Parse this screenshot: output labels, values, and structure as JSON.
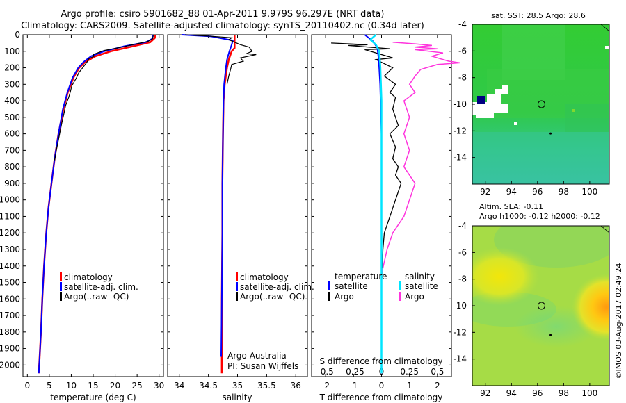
{
  "title": {
    "line1": "Argo profile: csiro 5901682_88 01-Apr-2011 9.979S 96.297E (NRT data)",
    "line2": "Climatology: CARS2009. Satellite-adjusted climatology: synTS_20110402.nc (0.34d later)"
  },
  "credit": "©IMOS 03-Aug-2017 02:49:24",
  "colors": {
    "clim": "#ff0000",
    "sat": "#0000ff",
    "argo": "#000000",
    "sat_s": "#00e5ff",
    "argo_s": "#ff33dd"
  },
  "depth_axis": {
    "ticks": [
      "0",
      "100",
      "200",
      "300",
      "400",
      "500",
      "600",
      "700",
      "800",
      "900",
      "1000",
      "1100",
      "1200",
      "1300",
      "1400",
      "1500",
      "1600",
      "1700",
      "1800",
      "1900",
      "2000"
    ],
    "range": [
      0,
      2070
    ]
  },
  "chart_data": [
    {
      "type": "line",
      "id": "temperature",
      "xlabel": "temperature (deg C)",
      "xlim": [
        -1,
        31
      ],
      "xticks": [
        "0",
        "5",
        "10",
        "15",
        "20",
        "25",
        "30"
      ],
      "legend": [
        "climatology",
        "satellite-adj. clim.",
        "Argo(..raw -QC)"
      ],
      "series": [
        {
          "name": "climatology",
          "points": [
            [
              29.2,
              0
            ],
            [
              29,
              20
            ],
            [
              28,
              45
            ],
            [
              24,
              70
            ],
            [
              19,
              100
            ],
            [
              15.5,
              130
            ],
            [
              13.2,
              165
            ],
            [
              11.8,
              200
            ],
            [
              10.5,
              260
            ],
            [
              9.2,
              350
            ],
            [
              8.2,
              450
            ],
            [
              7.1,
              600
            ],
            [
              6.2,
              750
            ],
            [
              5.5,
              900
            ],
            [
              4.8,
              1050
            ],
            [
              4.3,
              1200
            ],
            [
              3.8,
              1400
            ],
            [
              3.4,
              1600
            ],
            [
              3.1,
              1800
            ],
            [
              2.8,
              1950
            ],
            [
              2.6,
              2050
            ]
          ]
        },
        {
          "name": "satellite-adj. clim.",
          "points": [
            [
              28.6,
              0
            ],
            [
              28.4,
              25
            ],
            [
              27,
              45
            ],
            [
              22,
              70
            ],
            [
              17.5,
              100
            ],
            [
              14.5,
              130
            ],
            [
              12.8,
              165
            ],
            [
              11.6,
              200
            ],
            [
              10.3,
              260
            ],
            [
              9.1,
              350
            ],
            [
              8.1,
              450
            ],
            [
              7.1,
              600
            ],
            [
              6.2,
              750
            ],
            [
              5.5,
              900
            ],
            [
              4.8,
              1050
            ],
            [
              4.3,
              1200
            ],
            [
              3.8,
              1400
            ],
            [
              3.4,
              1600
            ],
            [
              3.1,
              1800
            ],
            [
              2.8,
              1950
            ],
            [
              2.6,
              2050
            ]
          ]
        },
        {
          "name": "Argo(..raw -QC)",
          "points": [
            [
              28.7,
              5
            ],
            [
              28.5,
              25
            ],
            [
              27.5,
              40
            ],
            [
              24,
              60
            ],
            [
              21.5,
              75
            ],
            [
              17.5,
              95
            ],
            [
              16,
              110
            ],
            [
              15,
              120
            ],
            [
              15.2,
              130
            ],
            [
              14,
              145
            ],
            [
              13.6,
              165
            ],
            [
              12.6,
              200
            ],
            [
              11.7,
              230
            ],
            [
              11.2,
              260
            ],
            [
              10.1,
              310
            ],
            [
              9.8,
              345
            ],
            [
              9.4,
              380
            ],
            [
              8.7,
              430
            ],
            [
              8.4,
              470
            ],
            [
              7.8,
              540
            ],
            [
              7.2,
              620
            ],
            [
              6.6,
              700
            ],
            [
              6.2,
              760
            ]
          ]
        }
      ]
    },
    {
      "type": "line",
      "id": "salinity",
      "xlabel": "salinity",
      "xlim": [
        33.8,
        36.2
      ],
      "xticks": [
        "34",
        "34.5",
        "35",
        "35.5",
        "36"
      ],
      "legend": [
        "climatology",
        "satellite-adj. clim.",
        "Argo(..raw -QC)"
      ],
      "annotation": [
        "Argo Australia",
        "PI: Susan Wijffels"
      ],
      "series": [
        {
          "name": "climatology",
          "points": [
            [
              34.95,
              0
            ],
            [
              34.95,
              50
            ],
            [
              34.95,
              80
            ],
            [
              34.9,
              100
            ],
            [
              34.85,
              150
            ],
            [
              34.82,
              200
            ],
            [
              34.78,
              300
            ],
            [
              34.76,
              400
            ],
            [
              34.75,
              600
            ],
            [
              34.74,
              900
            ],
            [
              34.74,
              1200
            ],
            [
              34.73,
              1600
            ],
            [
              34.73,
              2050
            ]
          ]
        },
        {
          "name": "satellite-adj. clim.",
          "points": [
            [
              34.05,
              0
            ],
            [
              34.55,
              10
            ],
            [
              34.92,
              35
            ],
            [
              34.9,
              60
            ],
            [
              34.86,
              100
            ],
            [
              34.82,
              150
            ],
            [
              34.8,
              200
            ],
            [
              34.77,
              300
            ],
            [
              34.76,
              400
            ],
            [
              34.75,
              600
            ],
            [
              34.74,
              900
            ],
            [
              34.74,
              1200
            ],
            [
              34.73,
              1600
            ],
            [
              34.72,
              1950
            ]
          ]
        },
        {
          "name": "Argo(..raw -QC)",
          "points": [
            [
              34.1,
              0
            ],
            [
              34.5,
              8
            ],
            [
              34.9,
              18
            ],
            [
              34.85,
              30
            ],
            [
              34.95,
              45
            ],
            [
              35.05,
              60
            ],
            [
              35.2,
              75
            ],
            [
              35.25,
              100
            ],
            [
              35.15,
              115
            ],
            [
              35.32,
              120
            ],
            [
              35.05,
              140
            ],
            [
              35.1,
              160
            ],
            [
              34.9,
              180
            ],
            [
              34.88,
              210
            ],
            [
              34.85,
              250
            ],
            [
              34.82,
              300
            ]
          ]
        }
      ]
    },
    {
      "type": "line",
      "id": "differences",
      "xlabel": "T difference from climatology",
      "xlabel_top": "S difference from climatology",
      "xlim": [
        -2.5,
        2.5
      ],
      "xticks": [
        "-2",
        "-1",
        "0",
        "1",
        "2"
      ],
      "xticks_s": [
        "-0.5",
        "-0.25",
        "0",
        "0.25",
        "0.5"
      ],
      "legend_t": [
        "temperature",
        "satellite",
        "Argo"
      ],
      "legend_s": [
        "salinity",
        "satellite",
        "Argo"
      ],
      "series": [
        {
          "name": "T satellite",
          "points": [
            [
              -0.6,
              0
            ],
            [
              -0.3,
              40
            ],
            [
              -0.15,
              80
            ],
            [
              -0.1,
              150
            ],
            [
              -0.05,
              300
            ],
            [
              0,
              600
            ],
            [
              0,
              1000
            ],
            [
              0,
              1500
            ],
            [
              0,
              2050
            ]
          ]
        },
        {
          "name": "T Argo",
          "points": [
            [
              -1.8,
              50
            ],
            [
              -0.5,
              60
            ],
            [
              -1.2,
              65
            ],
            [
              0.3,
              85
            ],
            [
              -0.6,
              90
            ],
            [
              0.4,
              140
            ],
            [
              -0.2,
              150
            ],
            [
              0.4,
              200
            ],
            [
              0.1,
              250
            ],
            [
              0.5,
              300
            ],
            [
              0.3,
              350
            ],
            [
              0.5,
              380
            ],
            [
              0.4,
              450
            ],
            [
              0.6,
              550
            ],
            [
              0.3,
              600
            ],
            [
              0.5,
              680
            ],
            [
              0.4,
              750
            ],
            [
              0.6,
              800
            ],
            [
              0.5,
              850
            ],
            [
              0.7,
              900
            ],
            [
              0.6,
              950
            ],
            [
              0.5,
              1000
            ],
            [
              0.3,
              1100
            ],
            [
              0.1,
              1200
            ],
            [
              0.05,
              1300
            ],
            [
              0,
              1500
            ],
            [
              0,
              2050
            ]
          ]
        },
        {
          "name": "S satellite",
          "points": [
            [
              -0.05,
              0
            ],
            [
              -0.1,
              30
            ],
            [
              -0.05,
              60
            ],
            [
              -0.02,
              100
            ],
            [
              -0.01,
              200
            ],
            [
              0,
              400
            ],
            [
              0,
              800
            ],
            [
              0,
              1400
            ],
            [
              0,
              2050
            ]
          ]
        },
        {
          "name": "S Argo",
          "points": [
            [
              0.1,
              45
            ],
            [
              0.3,
              55
            ],
            [
              0.45,
              65
            ],
            [
              0.3,
              75
            ],
            [
              0.5,
              85
            ],
            [
              0.3,
              90
            ],
            [
              0.55,
              110
            ],
            [
              0.45,
              130
            ],
            [
              0.6,
              160
            ],
            [
              0.7,
              170
            ],
            [
              0.5,
              180
            ],
            [
              0.35,
              210
            ],
            [
              0.3,
              250
            ],
            [
              0.25,
              300
            ],
            [
              0.3,
              350
            ],
            [
              0.2,
              400
            ],
            [
              0.25,
              500
            ],
            [
              0.2,
              600
            ],
            [
              0.25,
              700
            ],
            [
              0.2,
              800
            ],
            [
              0.3,
              900
            ],
            [
              0.25,
              1000
            ],
            [
              0.2,
              1100
            ],
            [
              0.1,
              1200
            ],
            [
              0.05,
              1300
            ],
            [
              0,
              1450
            ],
            [
              0,
              2050
            ]
          ]
        }
      ]
    },
    {
      "type": "heatmap",
      "id": "sst_map",
      "title": "sat. SST: 28.5 Argo: 28.6",
      "xticks": [
        "92",
        "94",
        "96",
        "98",
        "100"
      ],
      "yticks": [
        "-4",
        "-6",
        "-8",
        "-10",
        "-12",
        "-14"
      ],
      "xlim": [
        91,
        101.5
      ],
      "ylim": [
        -16,
        -4
      ],
      "marker_circle": [
        96.3,
        -10
      ],
      "marker_dot": [
        97,
        -12.2
      ]
    },
    {
      "type": "heatmap",
      "id": "sla_map",
      "title_line1": "Altim. SLA: -0.11",
      "title_line2": "Argo h1000: -0.12 h2000: -0.12",
      "xticks": [
        "92",
        "94",
        "96",
        "98",
        "100"
      ],
      "yticks": [
        "-4",
        "-6",
        "-8",
        "-10",
        "-12",
        "-14"
      ],
      "xlim": [
        91,
        101.5
      ],
      "ylim": [
        -16,
        -4
      ],
      "marker_circle": [
        96.3,
        -10
      ],
      "marker_dot": [
        97,
        -12.2
      ]
    }
  ]
}
